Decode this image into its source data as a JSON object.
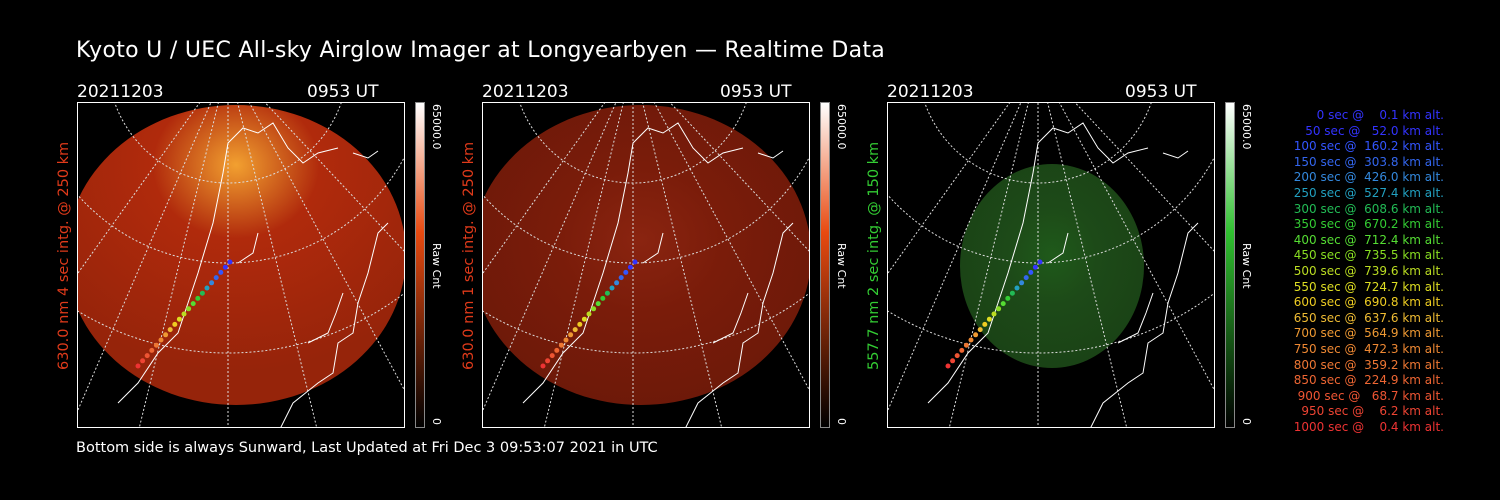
{
  "page": {
    "title": "Kyoto U / UEC All-sky Airglow Imager at Longyearbyen — Realtime Data",
    "footer": "Bottom side is always Sunward, Last Updated at Fri Dec  3 09:53:07 2021 in UTC"
  },
  "panels": [
    {
      "date": "20211203",
      "time": "0953 UT",
      "ylabel": "630.0 nm  4 sec intg. @ 250 km",
      "ylabel_color": "#e03a1a",
      "glow_color": "#b02a0c",
      "glow_hot": "#f2a030",
      "cbar_max": "65000.0",
      "cbar_min": "0",
      "cbar_unit": "Raw Cnt",
      "cbar_top": "#ffffff",
      "cbar_mid": "#e84a10",
      "cbar_bottom": "#000000"
    },
    {
      "date": "20211203",
      "time": "0953 UT",
      "ylabel": "630.0 nm  1 sec intg. @ 250 km",
      "ylabel_color": "#e03a1a",
      "glow_color": "#7a1c0a",
      "glow_hot": "#8a2410",
      "cbar_max": "65000.0",
      "cbar_min": "0",
      "cbar_unit": "Raw Cnt",
      "cbar_top": "#ffffff",
      "cbar_mid": "#e84a10",
      "cbar_bottom": "#000000"
    },
    {
      "date": "20211203",
      "time": "0953 UT",
      "ylabel": "557.7 nm  2 sec intg. @ 150 km",
      "ylabel_color": "#33cc33",
      "glow_color": "#1d4a18",
      "glow_hot": "#1f5a1a",
      "cbar_max": "65000.0",
      "cbar_min": "0",
      "cbar_unit": "Raw Cnt",
      "cbar_top": "#ffffff",
      "cbar_mid": "#30c030",
      "cbar_bottom": "#000000"
    }
  ],
  "legend": [
    {
      "text": "   0 sec @    0.1 km alt.",
      "color": "#3333ff"
    },
    {
      "text": "  50 sec @   52.0 km alt.",
      "color": "#3333ff"
    },
    {
      "text": " 100 sec @  160.2 km alt.",
      "color": "#3355ff"
    },
    {
      "text": " 150 sec @  303.8 km alt.",
      "color": "#3366ee"
    },
    {
      "text": " 200 sec @  426.0 km alt.",
      "color": "#3388dd"
    },
    {
      "text": " 250 sec @  527.4 km alt.",
      "color": "#22a0c0"
    },
    {
      "text": " 300 sec @  608.6 km alt.",
      "color": "#22bb55"
    },
    {
      "text": " 350 sec @  670.2 km alt.",
      "color": "#33cc33"
    },
    {
      "text": " 400 sec @  712.4 km alt.",
      "color": "#55dd33"
    },
    {
      "text": " 450 sec @  735.5 km alt.",
      "color": "#88dd22"
    },
    {
      "text": " 500 sec @  739.6 km alt.",
      "color": "#bbdd22"
    },
    {
      "text": " 550 sec @  724.7 km alt.",
      "color": "#dddd22"
    },
    {
      "text": " 600 sec @  690.8 km alt.",
      "color": "#eecc22"
    },
    {
      "text": " 650 sec @  637.6 km alt.",
      "color": "#eebb33"
    },
    {
      "text": " 700 sec @  564.9 km alt.",
      "color": "#ee9933"
    },
    {
      "text": " 750 sec @  472.3 km alt.",
      "color": "#ee8833"
    },
    {
      "text": " 800 sec @  359.2 km alt.",
      "color": "#ee7733"
    },
    {
      "text": " 850 sec @  224.9 km alt.",
      "color": "#ee6633"
    },
    {
      "text": " 900 sec @   68.7 km alt.",
      "color": "#ee5533"
    },
    {
      "text": " 950 sec @    6.2 km alt.",
      "color": "#ee4433"
    },
    {
      "text": "1000 sec @    0.4 km alt.",
      "color": "#ee3333"
    }
  ]
}
